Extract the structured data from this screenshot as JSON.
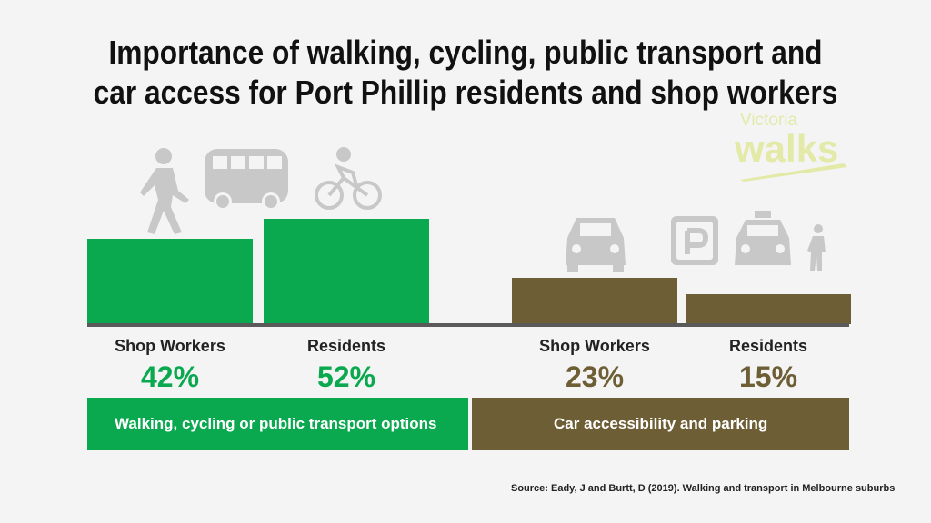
{
  "title": [
    "Importance of walking, cycling, public transport and",
    "car access for Port Phillip residents and shop workers"
  ],
  "logo": {
    "line1": "Victoria",
    "line2": "walks"
  },
  "chart_data": {
    "type": "bar",
    "title": "Importance of walking, cycling, public transport and car access for Port Phillip residents and shop workers",
    "categories": [
      "Shop Workers",
      "Residents",
      "Shop Workers",
      "Residents"
    ],
    "values": [
      42,
      52,
      23,
      15
    ],
    "value_labels": [
      "42%",
      "52%",
      "23%",
      "15%"
    ],
    "groups": [
      {
        "name": "Walking, cycling or public transport options",
        "color": "#0aa84f",
        "indices": [
          0,
          1
        ]
      },
      {
        "name": "Car accessibility and parking",
        "color": "#6e5e35",
        "indices": [
          2,
          3
        ]
      }
    ],
    "ylim": [
      0,
      60
    ]
  },
  "source": "Source:  Eady, J and Burtt, D (2019). Walking and transport in Melbourne suburbs"
}
